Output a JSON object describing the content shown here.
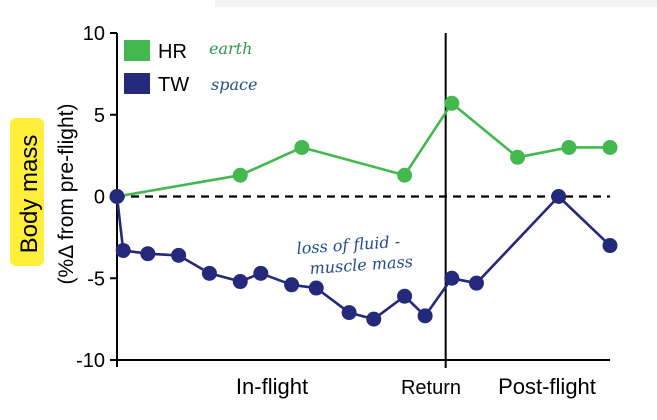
{
  "chart_data": {
    "type": "line",
    "ylabel": "Body mass",
    "ylabel_sub": "(%Δ from pre-flight)",
    "ylim": [
      -10,
      10
    ],
    "yticks": [
      10,
      5,
      0,
      -5,
      -10
    ],
    "zero_line": "dashed",
    "legend_placement": "top-left",
    "phase_labels": [
      "In-flight",
      "Return",
      "Post-flight"
    ],
    "series": [
      {
        "name": "HR",
        "color": "#43b84d",
        "annotation": "earth",
        "x": [
          0,
          6,
          9,
          14,
          16.3,
          19.5,
          22,
          24
        ],
        "y": [
          0,
          1.3,
          3.0,
          1.3,
          5.7,
          2.4,
          3.0,
          3.0
        ]
      },
      {
        "name": "TW",
        "color": "#25297b",
        "annotation": "space",
        "x": [
          0,
          0.3,
          1.5,
          3,
          4.5,
          6,
          7,
          8.5,
          9.7,
          11.3,
          12.5,
          14,
          15,
          16.3,
          17.5,
          21.5,
          24
        ],
        "y": [
          0,
          -3.3,
          -3.5,
          -3.6,
          -4.7,
          -5.2,
          -4.7,
          -5.4,
          -5.6,
          -7.1,
          -7.5,
          -6.1,
          -7.3,
          -5.0,
          -5.3,
          0,
          -3.0
        ]
      }
    ],
    "annotations": [
      "loss of fluid -",
      "muscle mass"
    ]
  },
  "colors": {
    "highlight": "#ffef3a",
    "annotation_ink": "#1f4d8c",
    "earth_ink": "#2f9a4a"
  }
}
